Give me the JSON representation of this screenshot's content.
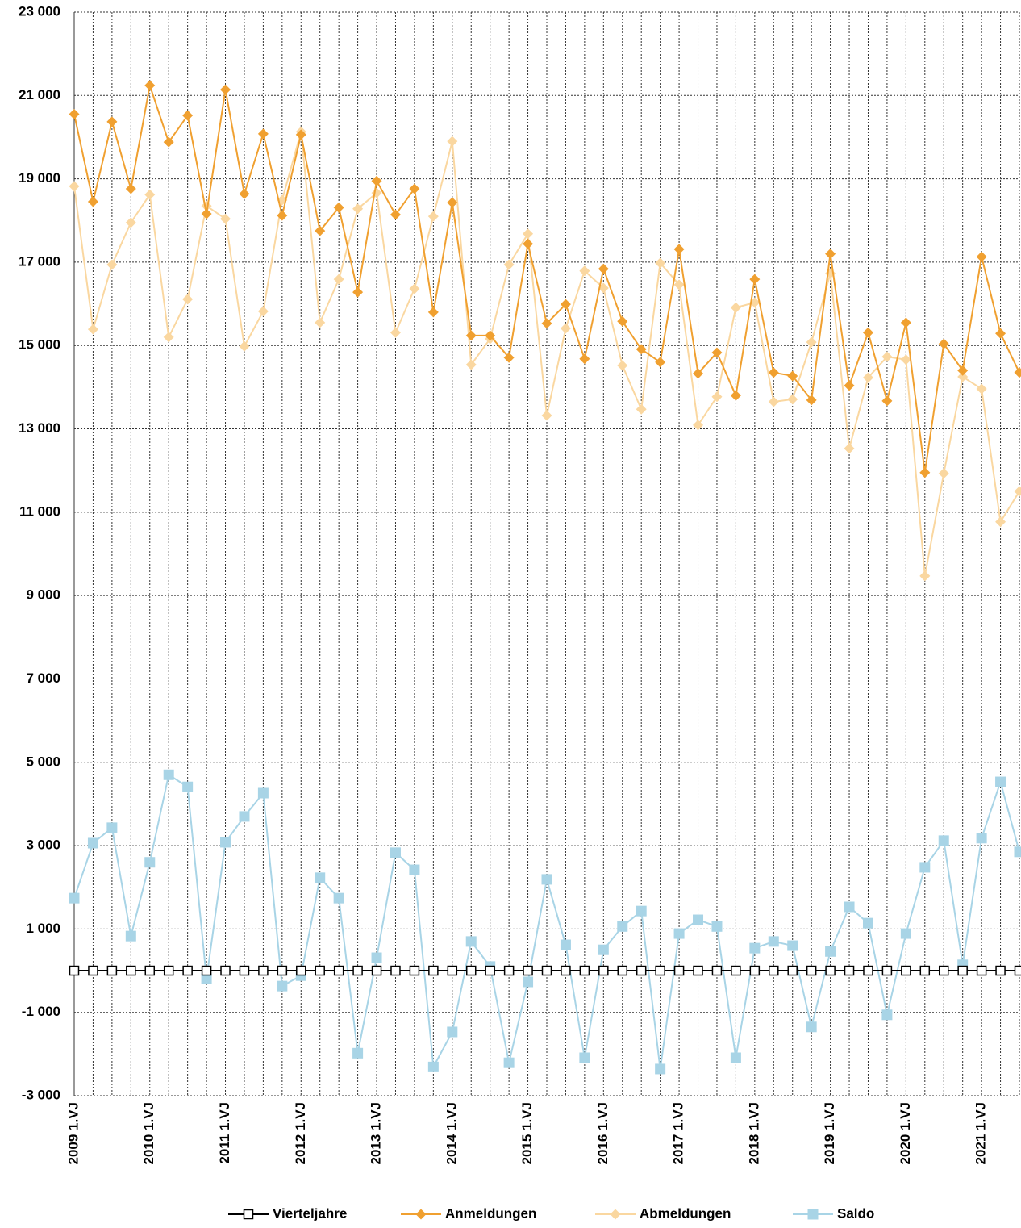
{
  "chart_data": {
    "type": "line",
    "categories": [
      "2009 1.VJ",
      null,
      null,
      null,
      "2010 1.VJ",
      null,
      null,
      null,
      "2011 1.VJ",
      null,
      null,
      null,
      "2012 1.VJ",
      null,
      null,
      null,
      "2013 1.VJ",
      null,
      null,
      null,
      "2014 1.VJ",
      null,
      null,
      null,
      "2015 1.VJ",
      null,
      null,
      null,
      "2016 1.VJ",
      null,
      null,
      null,
      "2017 1.VJ",
      null,
      null,
      null,
      "2018 1.VJ",
      null,
      null,
      null,
      "2019 1.VJ",
      null,
      null,
      null,
      "2020 1.VJ",
      null,
      null,
      null,
      "2021 1.VJ",
      null,
      null
    ],
    "series": [
      {
        "name": "Vierteljahre",
        "color": "#000000",
        "marker": "square-open",
        "values": [
          0,
          0,
          0,
          0,
          0,
          0,
          0,
          0,
          0,
          0,
          0,
          0,
          0,
          0,
          0,
          0,
          0,
          0,
          0,
          0,
          0,
          0,
          0,
          0,
          0,
          0,
          0,
          0,
          0,
          0,
          0,
          0,
          0,
          0,
          0,
          0,
          0,
          0,
          0,
          0,
          0,
          0,
          0,
          0,
          0,
          0,
          0,
          0,
          0,
          0,
          0
        ]
      },
      {
        "name": "Anmeldungen",
        "color": "#f0a030",
        "marker": "diamond",
        "values": [
          20550,
          18450,
          20370,
          18760,
          21240,
          19880,
          20520,
          18160,
          21140,
          18640,
          20080,
          18120,
          20060,
          17750,
          18310,
          16280,
          18950,
          18140,
          18760,
          15800,
          18430,
          15240,
          15240,
          14710,
          17440,
          15530,
          15990,
          14680,
          16840,
          15580,
          14910,
          14600,
          17310,
          14330,
          14830,
          13800,
          16590,
          14350,
          14270,
          13690,
          17200,
          14040,
          15310,
          13670,
          15550,
          11950,
          15040,
          14400,
          17130,
          15290,
          14350
        ]
      },
      {
        "name": "Abmeldungen",
        "color": "#fad7a0",
        "marker": "diamond",
        "values": [
          18820,
          15390,
          16940,
          17950,
          18620,
          15200,
          16110,
          18350,
          18040,
          14980,
          15820,
          18490,
          20130,
          15550,
          16590,
          18280,
          18660,
          15310,
          16360,
          18100,
          19900,
          14540,
          15160,
          16940,
          17680,
          13320,
          15410,
          16790,
          16380,
          14520,
          13470,
          16980,
          16460,
          13090,
          13770,
          15910,
          16030,
          13650,
          13710,
          15080,
          16730,
          12530,
          14230,
          14730,
          14660,
          9470,
          11930,
          14250,
          13960,
          10770,
          11500
        ]
      },
      {
        "name": "Saldo",
        "color": "#a8d4e6",
        "marker": "square",
        "values": [
          1740,
          3060,
          3430,
          830,
          2600,
          4700,
          4410,
          -190,
          3080,
          3700,
          4260,
          -370,
          -120,
          2230,
          1740,
          -1980,
          310,
          2830,
          2420,
          -2310,
          -1470,
          700,
          100,
          -2210,
          -270,
          2190,
          620,
          -2090,
          500,
          1060,
          1430,
          -2360,
          890,
          1220,
          1060,
          -2090,
          540,
          700,
          600,
          -1350,
          460,
          1530,
          1140,
          -1060,
          890,
          2480,
          3120,
          140,
          3180,
          4530,
          2850
        ]
      }
    ],
    "ylim": [
      -3000,
      23000
    ],
    "yticks": [
      {
        "value": -3000,
        "label": "-3 000"
      },
      {
        "value": -1000,
        "label": "-1 000"
      },
      {
        "value": 1000,
        "label": "1 000"
      },
      {
        "value": 3000,
        "label": "3 000"
      },
      {
        "value": 5000,
        "label": "5 000"
      },
      {
        "value": 7000,
        "label": "7 000"
      },
      {
        "value": 9000,
        "label": "9 000"
      },
      {
        "value": 11000,
        "label": "11 000"
      },
      {
        "value": 13000,
        "label": "13 000"
      },
      {
        "value": 15000,
        "label": "15 000"
      },
      {
        "value": 17000,
        "label": "17 000"
      },
      {
        "value": 19000,
        "label": "19 000"
      },
      {
        "value": 21000,
        "label": "21 000"
      },
      {
        "value": 23000,
        "label": "23 000"
      }
    ],
    "grid": true,
    "legend": "bottom"
  }
}
